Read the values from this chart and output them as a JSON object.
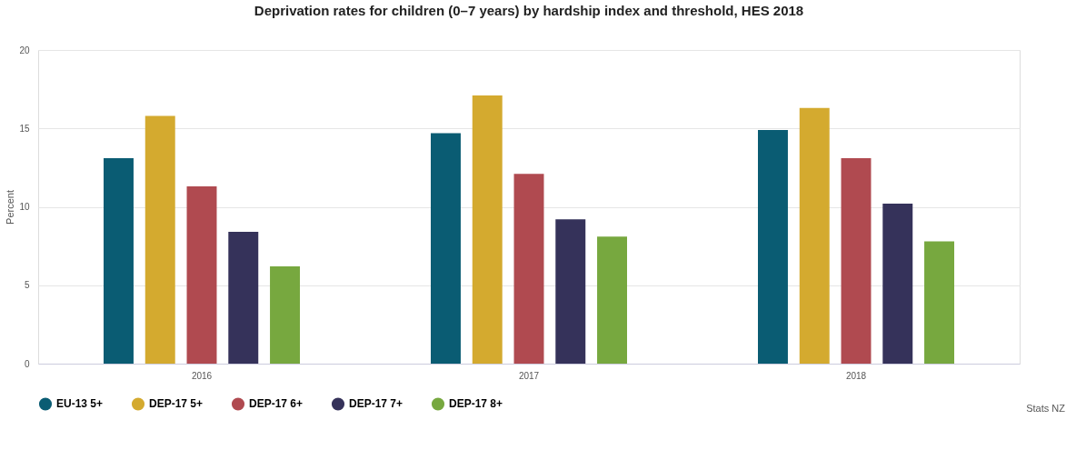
{
  "chart_data": {
    "type": "bar",
    "title": "Deprivation rates for children (0–7 years) by hardship index and threshold, HES 2018",
    "ylabel": "Percent",
    "categories": [
      "2016",
      "2017",
      "2018"
    ],
    "series": [
      {
        "name": "EU-13 5+",
        "color": "#0a5c73",
        "values": [
          13.1,
          14.7,
          14.9
        ]
      },
      {
        "name": "DEP-17 5+",
        "color": "#d4aa2f",
        "values": [
          15.8,
          17.1,
          16.3
        ]
      },
      {
        "name": "DEP-17 6+",
        "color": "#b04a50",
        "values": [
          11.3,
          12.1,
          13.1
        ]
      },
      {
        "name": "DEP-17 7+",
        "color": "#35325a",
        "values": [
          8.4,
          9.2,
          10.2
        ]
      },
      {
        "name": "DEP-17 8+",
        "color": "#77a83f",
        "values": [
          6.2,
          8.1,
          7.8
        ]
      }
    ],
    "ylim": [
      0,
      20
    ],
    "yticks": [
      0,
      5,
      10,
      15,
      20
    ],
    "grid": "y",
    "legend": "bottom",
    "annotations": [
      "Stats NZ"
    ]
  }
}
